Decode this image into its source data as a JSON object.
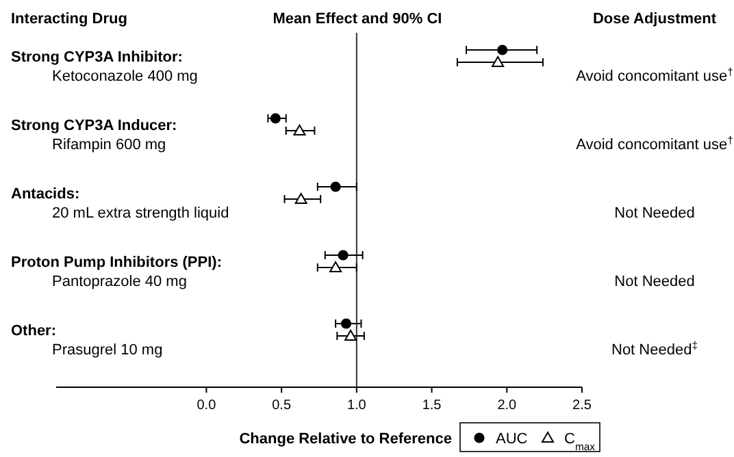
{
  "chart_data": {
    "type": "scatter",
    "orientation": "horizontal",
    "title": "Mean Effect and 90% CI",
    "ylabel": "Interacting Drug",
    "y2label": "Dose Adjustment",
    "xlabel": "Change Relative to Reference",
    "categories": [
      "Ketoconazole 400 mg",
      "Rifampin 600 mg",
      "20 mL extra strength liquid",
      "Pantoprazole 40 mg",
      "Prasugrel 10 mg"
    ],
    "y2_categories": [
      "Avoid concomitant use$^{†}$",
      "Avoid concomitant use$^{†}$",
      "Not Needed",
      "Not Needed",
      "Not Needed$^{‡}$"
    ],
    "annotations": [
      "Strong CYP3A Inhibitor:",
      "Strong CYP3A Inducer:",
      "Antacids:",
      "Proton Pump Inhibitors (PPI):",
      "Other:"
    ],
    "xlim": [
      -1,
      2.5
    ],
    "xticks": [
      {
        "value": 0,
        "label": "0.0"
      },
      {
        "value": 0.5,
        "label": "0.5"
      },
      {
        "value": 1,
        "label": "1.0"
      },
      {
        "value": 1.5,
        "label": "1.5"
      },
      {
        "value": 2,
        "label": "2.0"
      },
      {
        "value": 2.5,
        "label": "2.5"
      }
    ],
    "ref_lines": [
      {
        "axis": "x",
        "value": 1,
        "color": "#333333"
      }
    ],
    "legend": "bottom right",
    "grid": false,
    "series": [
      {
        "name": "AUC",
        "color": "#000000",
        "marker": "circle",
        "values": [
          1.97,
          0.46,
          0.86,
          0.91,
          0.93
        ],
        "errors": [
          [
            1.73,
            2.2
          ],
          [
            0.41,
            0.53
          ],
          [
            0.74,
            1.0
          ],
          [
            0.79,
            1.04
          ],
          [
            0.86,
            1.03
          ]
        ]
      },
      {
        "name": "C$_{max}$",
        "color": "#000000",
        "marker": "triangle",
        "values": [
          1.94,
          0.62,
          0.63,
          0.86,
          0.96
        ],
        "errors": [
          [
            1.67,
            2.24
          ],
          [
            0.53,
            0.72
          ],
          [
            0.52,
            0.76
          ],
          [
            0.74,
            1.0
          ],
          [
            0.87,
            1.05
          ]
        ]
      }
    ]
  }
}
